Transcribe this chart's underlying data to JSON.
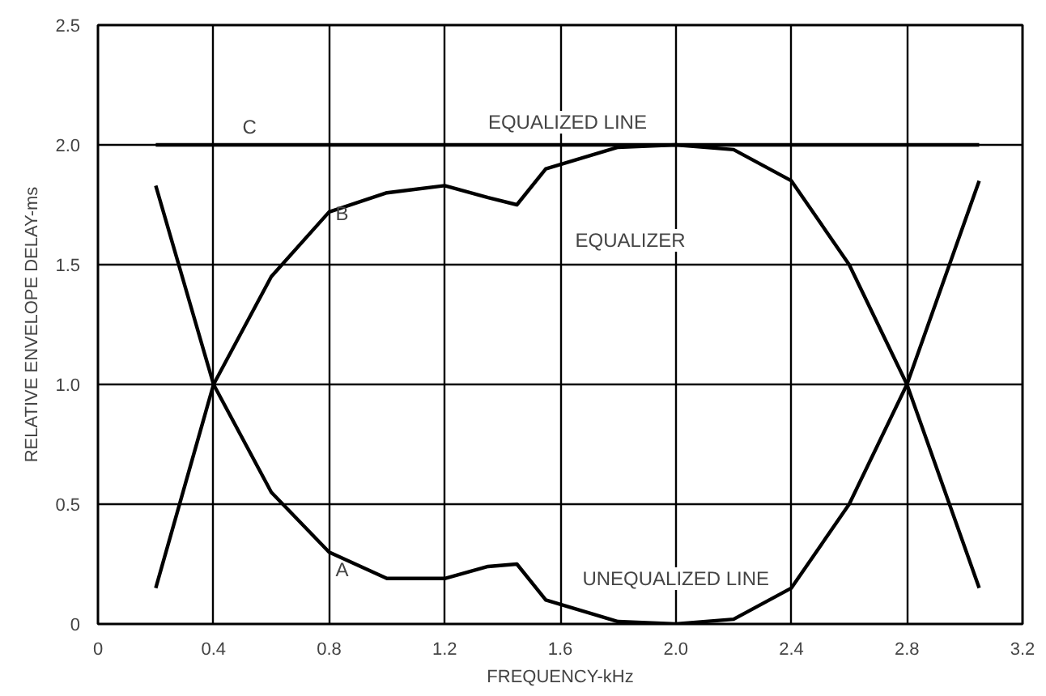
{
  "chart_data": {
    "type": "line",
    "xlabel": "FREQUENCY-kHz",
    "ylabel": "RELATIVE ENVELOPE DELAY-ms",
    "xlim": [
      0,
      3.2
    ],
    "ylim": [
      0,
      2.5
    ],
    "xticks": [
      {
        "value": 0,
        "label": "0"
      },
      {
        "value": 0.4,
        "label": "0.4"
      },
      {
        "value": 0.8,
        "label": "0.8"
      },
      {
        "value": 1.2,
        "label": "1.2"
      },
      {
        "value": 1.6,
        "label": "1.6"
      },
      {
        "value": 2.0,
        "label": "2.0"
      },
      {
        "value": 2.4,
        "label": "2.4"
      },
      {
        "value": 2.8,
        "label": "2.8"
      },
      {
        "value": 3.2,
        "label": "3.2"
      }
    ],
    "yticks": [
      {
        "value": 0,
        "label": "0"
      },
      {
        "value": 0.5,
        "label": "0.5"
      },
      {
        "value": 1.0,
        "label": "1.0"
      },
      {
        "value": 1.5,
        "label": "1.5"
      },
      {
        "value": 2.0,
        "label": "2.0"
      },
      {
        "value": 2.5,
        "label": "2.5"
      }
    ],
    "grid": true,
    "marker": "none",
    "line_style": "solid",
    "series": [
      {
        "name": "A",
        "color": "#000000",
        "x": [
          0.2,
          0.4,
          0.6,
          0.8,
          1.0,
          1.2,
          1.35,
          1.45,
          1.55,
          1.8,
          2.0,
          2.2,
          2.4,
          2.6,
          2.8,
          3.05
        ],
        "values": [
          1.83,
          1.0,
          0.55,
          0.3,
          0.19,
          0.19,
          0.24,
          0.25,
          0.1,
          0.01,
          0.0,
          0.02,
          0.15,
          0.5,
          1.0,
          1.85
        ]
      },
      {
        "name": "B",
        "color": "#000000",
        "x": [
          0.2,
          0.4,
          0.6,
          0.8,
          1.0,
          1.2,
          1.35,
          1.45,
          1.55,
          1.8,
          2.0,
          2.2,
          2.4,
          2.6,
          2.8,
          3.05
        ],
        "values": [
          0.15,
          1.0,
          1.45,
          1.72,
          1.8,
          1.83,
          1.78,
          1.75,
          1.9,
          1.99,
          2.0,
          1.98,
          1.85,
          1.5,
          1.0,
          0.15
        ]
      },
      {
        "name": "C",
        "color": "#000000",
        "x": [
          0.2,
          3.05
        ],
        "values": [
          2.0,
          2.0
        ]
      }
    ],
    "annotations": [
      "UNEQUALIZED LINE",
      "EQUALIZER",
      "EQUALIZED LINE"
    ]
  }
}
